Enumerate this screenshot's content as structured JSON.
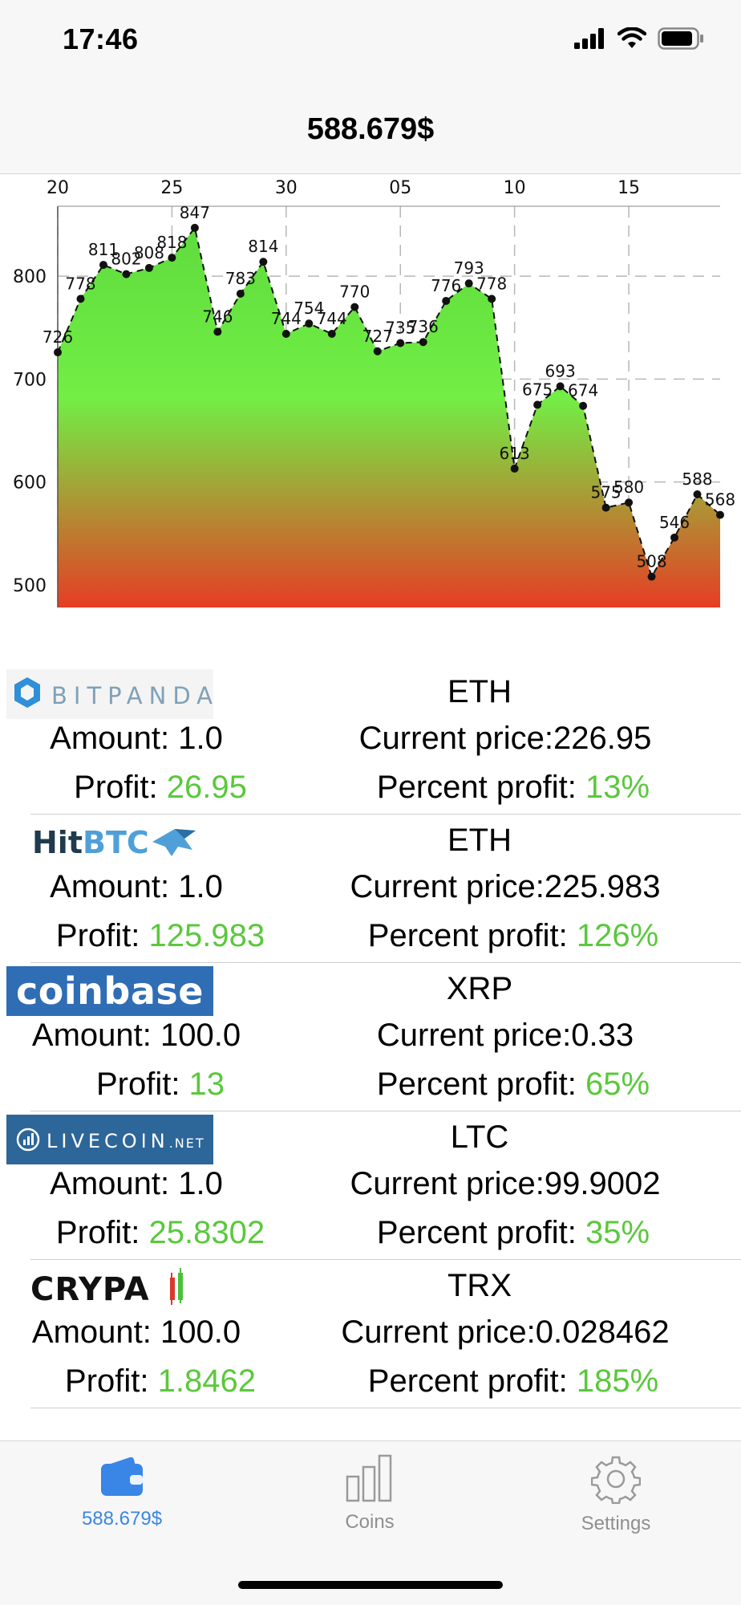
{
  "status_bar": {
    "time": "17:46",
    "icons": [
      "signal-icon",
      "wifi-icon",
      "battery-icon"
    ]
  },
  "nav": {
    "title": "588.679$"
  },
  "chart_data": {
    "type": "area",
    "title": "",
    "xlabel": "",
    "ylabel": "",
    "x_tick_labels": [
      "20",
      "25",
      "30",
      "05",
      "10",
      "15"
    ],
    "y_tick_labels": [
      "800",
      "700",
      "600",
      "500"
    ],
    "ylim": [
      478,
      868
    ],
    "grid": true,
    "fill_gradient": [
      "#5fdc3e",
      "#72ee45",
      "#e63d24"
    ],
    "point_labels": [
      "726",
      "778",
      "811",
      "802",
      "808",
      "818",
      "847",
      "746",
      "783",
      "814",
      "744",
      "754",
      "744",
      "770",
      "727",
      "735",
      "736",
      "776",
      "793",
      "778",
      "613",
      "675",
      "693",
      "674",
      "575",
      "580",
      "508",
      "546",
      "588",
      "568"
    ],
    "values": [
      726,
      778,
      811,
      802,
      808,
      818,
      847,
      746,
      783,
      814,
      744,
      754,
      744,
      770,
      727,
      735,
      736,
      776,
      793,
      778,
      613,
      675,
      693,
      674,
      575,
      580,
      508,
      546,
      588,
      568
    ]
  },
  "exchanges": [
    {
      "name": "BITPANDA",
      "coin": "ETH",
      "amount": "Amount: 1.0",
      "price": "Current price:226.95",
      "profit_label": "Profit: ",
      "profit": "26.95",
      "pprofit_label": "Percent profit: ",
      "pprofit": "13%"
    },
    {
      "name_a": "Hit",
      "name_b": "BTC",
      "coin": "ETH",
      "amount": "Amount: 1.0",
      "price": "Current price:225.983",
      "profit_label": "Profit: ",
      "profit": "125.983",
      "pprofit_label": "Percent profit: ",
      "pprofit": "126%"
    },
    {
      "name": "coinbase",
      "coin": "XRP",
      "amount": "Amount: 100.0",
      "price": "Current price:0.33",
      "profit_label": "Profit: ",
      "profit": "13",
      "pprofit_label": "Percent profit: ",
      "pprofit": "65%"
    },
    {
      "name": "LIVECOIN",
      "name_suffix": ".NET",
      "coin": "LTC",
      "amount": "Amount: 1.0",
      "price": "Current price:99.9002",
      "profit_label": "Profit: ",
      "profit": "25.8302",
      "pprofit_label": "Percent profit: ",
      "pprofit": "35%"
    },
    {
      "name": "CRYPA",
      "coin": "TRX",
      "amount": "Amount: 100.0",
      "price": "Current price:0.028462",
      "profit_label": "Profit: ",
      "profit": "1.8462",
      "pprofit_label": "Percent profit: ",
      "pprofit": "185%"
    }
  ],
  "tabs": [
    {
      "label": "588.679$",
      "icon": "wallet-icon",
      "active": true
    },
    {
      "label": "Coins",
      "icon": "bar-chart-icon",
      "active": false
    },
    {
      "label": "Settings",
      "icon": "gear-icon",
      "active": false
    }
  ],
  "colors": {
    "accent": "#3a86e6",
    "profit_green": "#5ac83c",
    "inactive": "#8f8f8f"
  }
}
